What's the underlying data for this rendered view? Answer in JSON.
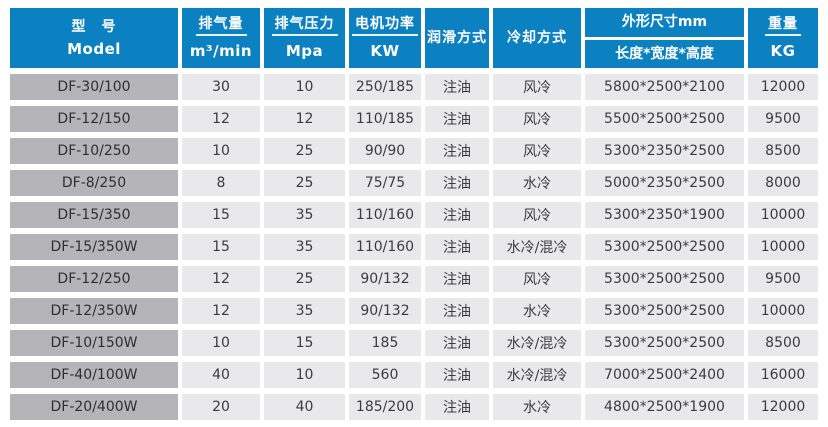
{
  "table": {
    "columns": [
      {
        "key": "model",
        "zh": "型　号",
        "en": "Model"
      },
      {
        "key": "displacement",
        "zh": "排气量",
        "en": "m³/min"
      },
      {
        "key": "pressure",
        "zh": "排气压力",
        "en": "Mpa"
      },
      {
        "key": "power",
        "zh": "电机功率",
        "en": "KW"
      },
      {
        "key": "lubrication",
        "zh": "润滑方式"
      },
      {
        "key": "cooling",
        "zh": "冷却方式"
      },
      {
        "key": "dimensions",
        "zh": "外形尺寸mm",
        "sub": "长度*宽度*高度"
      },
      {
        "key": "weight",
        "zh": "重量",
        "en": "KG"
      }
    ],
    "rows": [
      [
        "DF-30/100",
        "30",
        "10",
        "250/185",
        "注油",
        "风冷",
        "5800*2500*2100",
        "12000"
      ],
      [
        "DF-12/150",
        "12",
        "12",
        "110/185",
        "注油",
        "风冷",
        "5500*2500*2500",
        "9500"
      ],
      [
        "DF-10/250",
        "10",
        "25",
        "90/90",
        "注油",
        "风冷",
        "5300*2350*2500",
        "8500"
      ],
      [
        "DF-8/250",
        "8",
        "25",
        "75/75",
        "注油",
        "水冷",
        "5000*2350*2500",
        "8000"
      ],
      [
        "DF-15/350",
        "15",
        "35",
        "110/160",
        "注油",
        "风冷",
        "5300*2350*1900",
        "10000"
      ],
      [
        "DF-15/350W",
        "15",
        "35",
        "110/160",
        "注油",
        "水冷/混冷",
        "5300*2500*2500",
        "10000"
      ],
      [
        "DF-12/250",
        "12",
        "25",
        "90/132",
        "注油",
        "风冷",
        "5300*2500*2500",
        "9500"
      ],
      [
        "DF-12/350W",
        "12",
        "35",
        "90/132",
        "注油",
        "水冷",
        "5300*2500*2500",
        "10000"
      ],
      [
        "DF-10/150W",
        "10",
        "15",
        "185",
        "注油",
        "水冷/混冷",
        "5300*2500*2500",
        "8500"
      ],
      [
        "DF-40/100W",
        "40",
        "10",
        "560",
        "注油",
        "水冷/混冷",
        "7000*2500*2400",
        "16000"
      ],
      [
        "DF-20/400W",
        "20",
        "40",
        "185/200",
        "注油",
        "水冷",
        "4800*2500*1900",
        "12000"
      ]
    ],
    "colors": {
      "header_bg": "#0c81c2",
      "header_text": "#ffffff",
      "model_cell_bg": "#b5b5b9",
      "data_cell_bg": "#e9e9ec",
      "grid_gap": "#ffffff",
      "data_text": "#3c3c3c"
    }
  }
}
